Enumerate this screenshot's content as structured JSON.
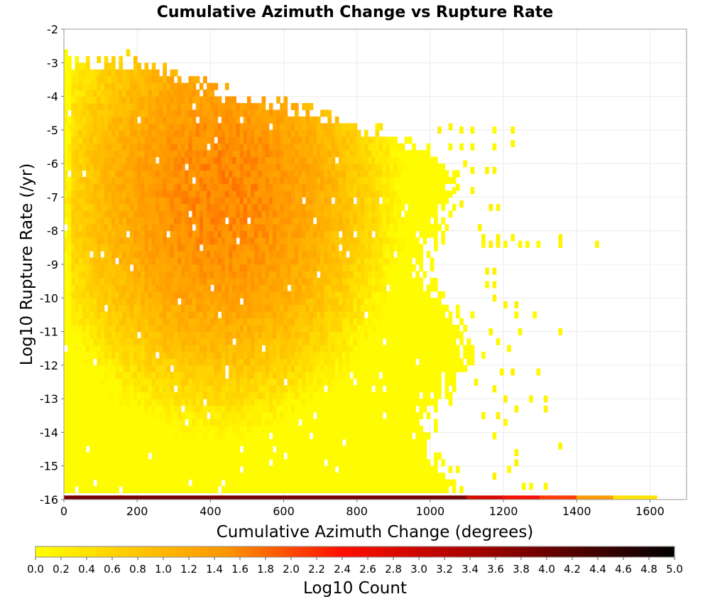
{
  "chart_data": {
    "type": "heatmap",
    "title": "Cumulative Azimuth Change vs Rupture Rate",
    "xlabel": "Cumulative Azimuth Change (degrees)",
    "ylabel": "Log10 Rupture Rate (/yr)",
    "xlim": [
      0,
      1700
    ],
    "ylim": [
      -16,
      -2
    ],
    "x_ticks": [
      0,
      200,
      400,
      600,
      800,
      1000,
      1200,
      1400,
      1600
    ],
    "y_ticks": [
      -2,
      -3,
      -4,
      -5,
      -6,
      -7,
      -8,
      -9,
      -10,
      -11,
      -12,
      -13,
      -14,
      -15,
      -16
    ],
    "bin_width_x": 10,
    "bin_height_y": 0.2,
    "grid": true,
    "colorbar": {
      "label": "Log10 Count",
      "min": 0.0,
      "max": 5.0,
      "ticks": [
        "0.0",
        "0.2",
        "0.4",
        "0.6",
        "0.8",
        "1.0",
        "1.2",
        "1.4",
        "1.6",
        "1.8",
        "2.0",
        "2.2",
        "2.4",
        "2.6",
        "2.8",
        "3.0",
        "3.2",
        "3.4",
        "3.6",
        "3.8",
        "4.0",
        "4.2",
        "4.4",
        "4.6",
        "4.8",
        "5.0"
      ],
      "colors": [
        "#ffff00",
        "#ff8c00",
        "#ff0000",
        "#000000"
      ],
      "placement": "bottom"
    },
    "density_summary": {
      "peak_center_x": 420,
      "peak_center_y": -7.0,
      "peak_log10_count": 1.6,
      "max_x_extent": 1120,
      "upper_rate_boundary": [
        [
          0,
          -2.7
        ],
        [
          200,
          -2.9
        ],
        [
          400,
          -3.7
        ],
        [
          600,
          -4.2
        ],
        [
          800,
          -4.8
        ],
        [
          1000,
          -5.5
        ],
        [
          1100,
          -6.5
        ]
      ]
    },
    "floor_row": {
      "y": -16,
      "description": "Dense row of bins at the lowest rupture rate",
      "segments": [
        {
          "x": [
            0,
            1100
          ],
          "log10_count": 3.9
        },
        {
          "x": [
            1100,
            1200
          ],
          "log10_count": 2.9
        },
        {
          "x": [
            1200,
            1300
          ],
          "log10_count": 2.5
        },
        {
          "x": [
            1300,
            1400
          ],
          "log10_count": 2.1
        },
        {
          "x": [
            1400,
            1500
          ],
          "log10_count": 1.4
        },
        {
          "x": [
            1500,
            1620
          ],
          "log10_count": 0.4
        }
      ]
    },
    "sparse_cells": [
      {
        "x": 1020,
        "y": -5.1
      },
      {
        "x": 1050,
        "y": -5.0
      },
      {
        "x": 1080,
        "y": -5.1
      },
      {
        "x": 1110,
        "y": -5.1
      },
      {
        "x": 1170,
        "y": -5.1
      },
      {
        "x": 1220,
        "y": -5.1
      },
      {
        "x": 1220,
        "y": -5.5
      },
      {
        "x": 1050,
        "y": -5.6
      },
      {
        "x": 1080,
        "y": -5.6
      },
      {
        "x": 1110,
        "y": -5.6
      },
      {
        "x": 1170,
        "y": -5.6
      },
      {
        "x": 1090,
        "y": -6.1
      },
      {
        "x": 1110,
        "y": -6.3
      },
      {
        "x": 1150,
        "y": -6.3
      },
      {
        "x": 1170,
        "y": -6.3
      },
      {
        "x": 1030,
        "y": -6.8
      },
      {
        "x": 1060,
        "y": -6.9
      },
      {
        "x": 1110,
        "y": -6.9
      },
      {
        "x": 1080,
        "y": -7.3
      },
      {
        "x": 1160,
        "y": -7.4
      },
      {
        "x": 1180,
        "y": -7.4
      },
      {
        "x": 1130,
        "y": -8.0
      },
      {
        "x": 1140,
        "y": -8.3
      },
      {
        "x": 1180,
        "y": -8.3
      },
      {
        "x": 1220,
        "y": -8.3
      },
      {
        "x": 1140,
        "y": -8.5
      },
      {
        "x": 1160,
        "y": -8.5
      },
      {
        "x": 1180,
        "y": -8.5
      },
      {
        "x": 1200,
        "y": -8.5
      },
      {
        "x": 1240,
        "y": -8.5
      },
      {
        "x": 1260,
        "y": -8.5
      },
      {
        "x": 1290,
        "y": -8.5
      },
      {
        "x": 1350,
        "y": -8.3
      },
      {
        "x": 1350,
        "y": -8.5
      },
      {
        "x": 1450,
        "y": -8.5
      },
      {
        "x": 1150,
        "y": -9.3
      },
      {
        "x": 1170,
        "y": -9.3
      },
      {
        "x": 1150,
        "y": -9.7
      },
      {
        "x": 1170,
        "y": -9.7
      },
      {
        "x": 1170,
        "y": -10.1
      },
      {
        "x": 1200,
        "y": -10.3
      },
      {
        "x": 1230,
        "y": -10.3
      },
      {
        "x": 1230,
        "y": -10.6
      },
      {
        "x": 1110,
        "y": -10.6
      },
      {
        "x": 1280,
        "y": -10.6
      },
      {
        "x": 1160,
        "y": -11.1
      },
      {
        "x": 1240,
        "y": -11.1
      },
      {
        "x": 1350,
        "y": -11.1
      },
      {
        "x": 1180,
        "y": -11.4
      },
      {
        "x": 1210,
        "y": -11.6
      },
      {
        "x": 1140,
        "y": -11.8
      },
      {
        "x": 1190,
        "y": -12.3
      },
      {
        "x": 1220,
        "y": -12.3
      },
      {
        "x": 1290,
        "y": -12.3
      },
      {
        "x": 1120,
        "y": -12.6
      },
      {
        "x": 1170,
        "y": -12.8
      },
      {
        "x": 1200,
        "y": -13.1
      },
      {
        "x": 1270,
        "y": -13.1
      },
      {
        "x": 1310,
        "y": -13.1
      },
      {
        "x": 1310,
        "y": -13.4
      },
      {
        "x": 1230,
        "y": -13.4
      },
      {
        "x": 1140,
        "y": -13.6
      },
      {
        "x": 1180,
        "y": -13.6
      },
      {
        "x": 1200,
        "y": -13.8
      },
      {
        "x": 1170,
        "y": -14.2
      },
      {
        "x": 1350,
        "y": -14.5
      },
      {
        "x": 1230,
        "y": -14.7
      },
      {
        "x": 1230,
        "y": -15.0
      },
      {
        "x": 1210,
        "y": -15.2
      },
      {
        "x": 1170,
        "y": -15.4
      },
      {
        "x": 1250,
        "y": -15.7
      },
      {
        "x": 1270,
        "y": -15.7
      },
      {
        "x": 1310,
        "y": -15.7
      }
    ]
  }
}
